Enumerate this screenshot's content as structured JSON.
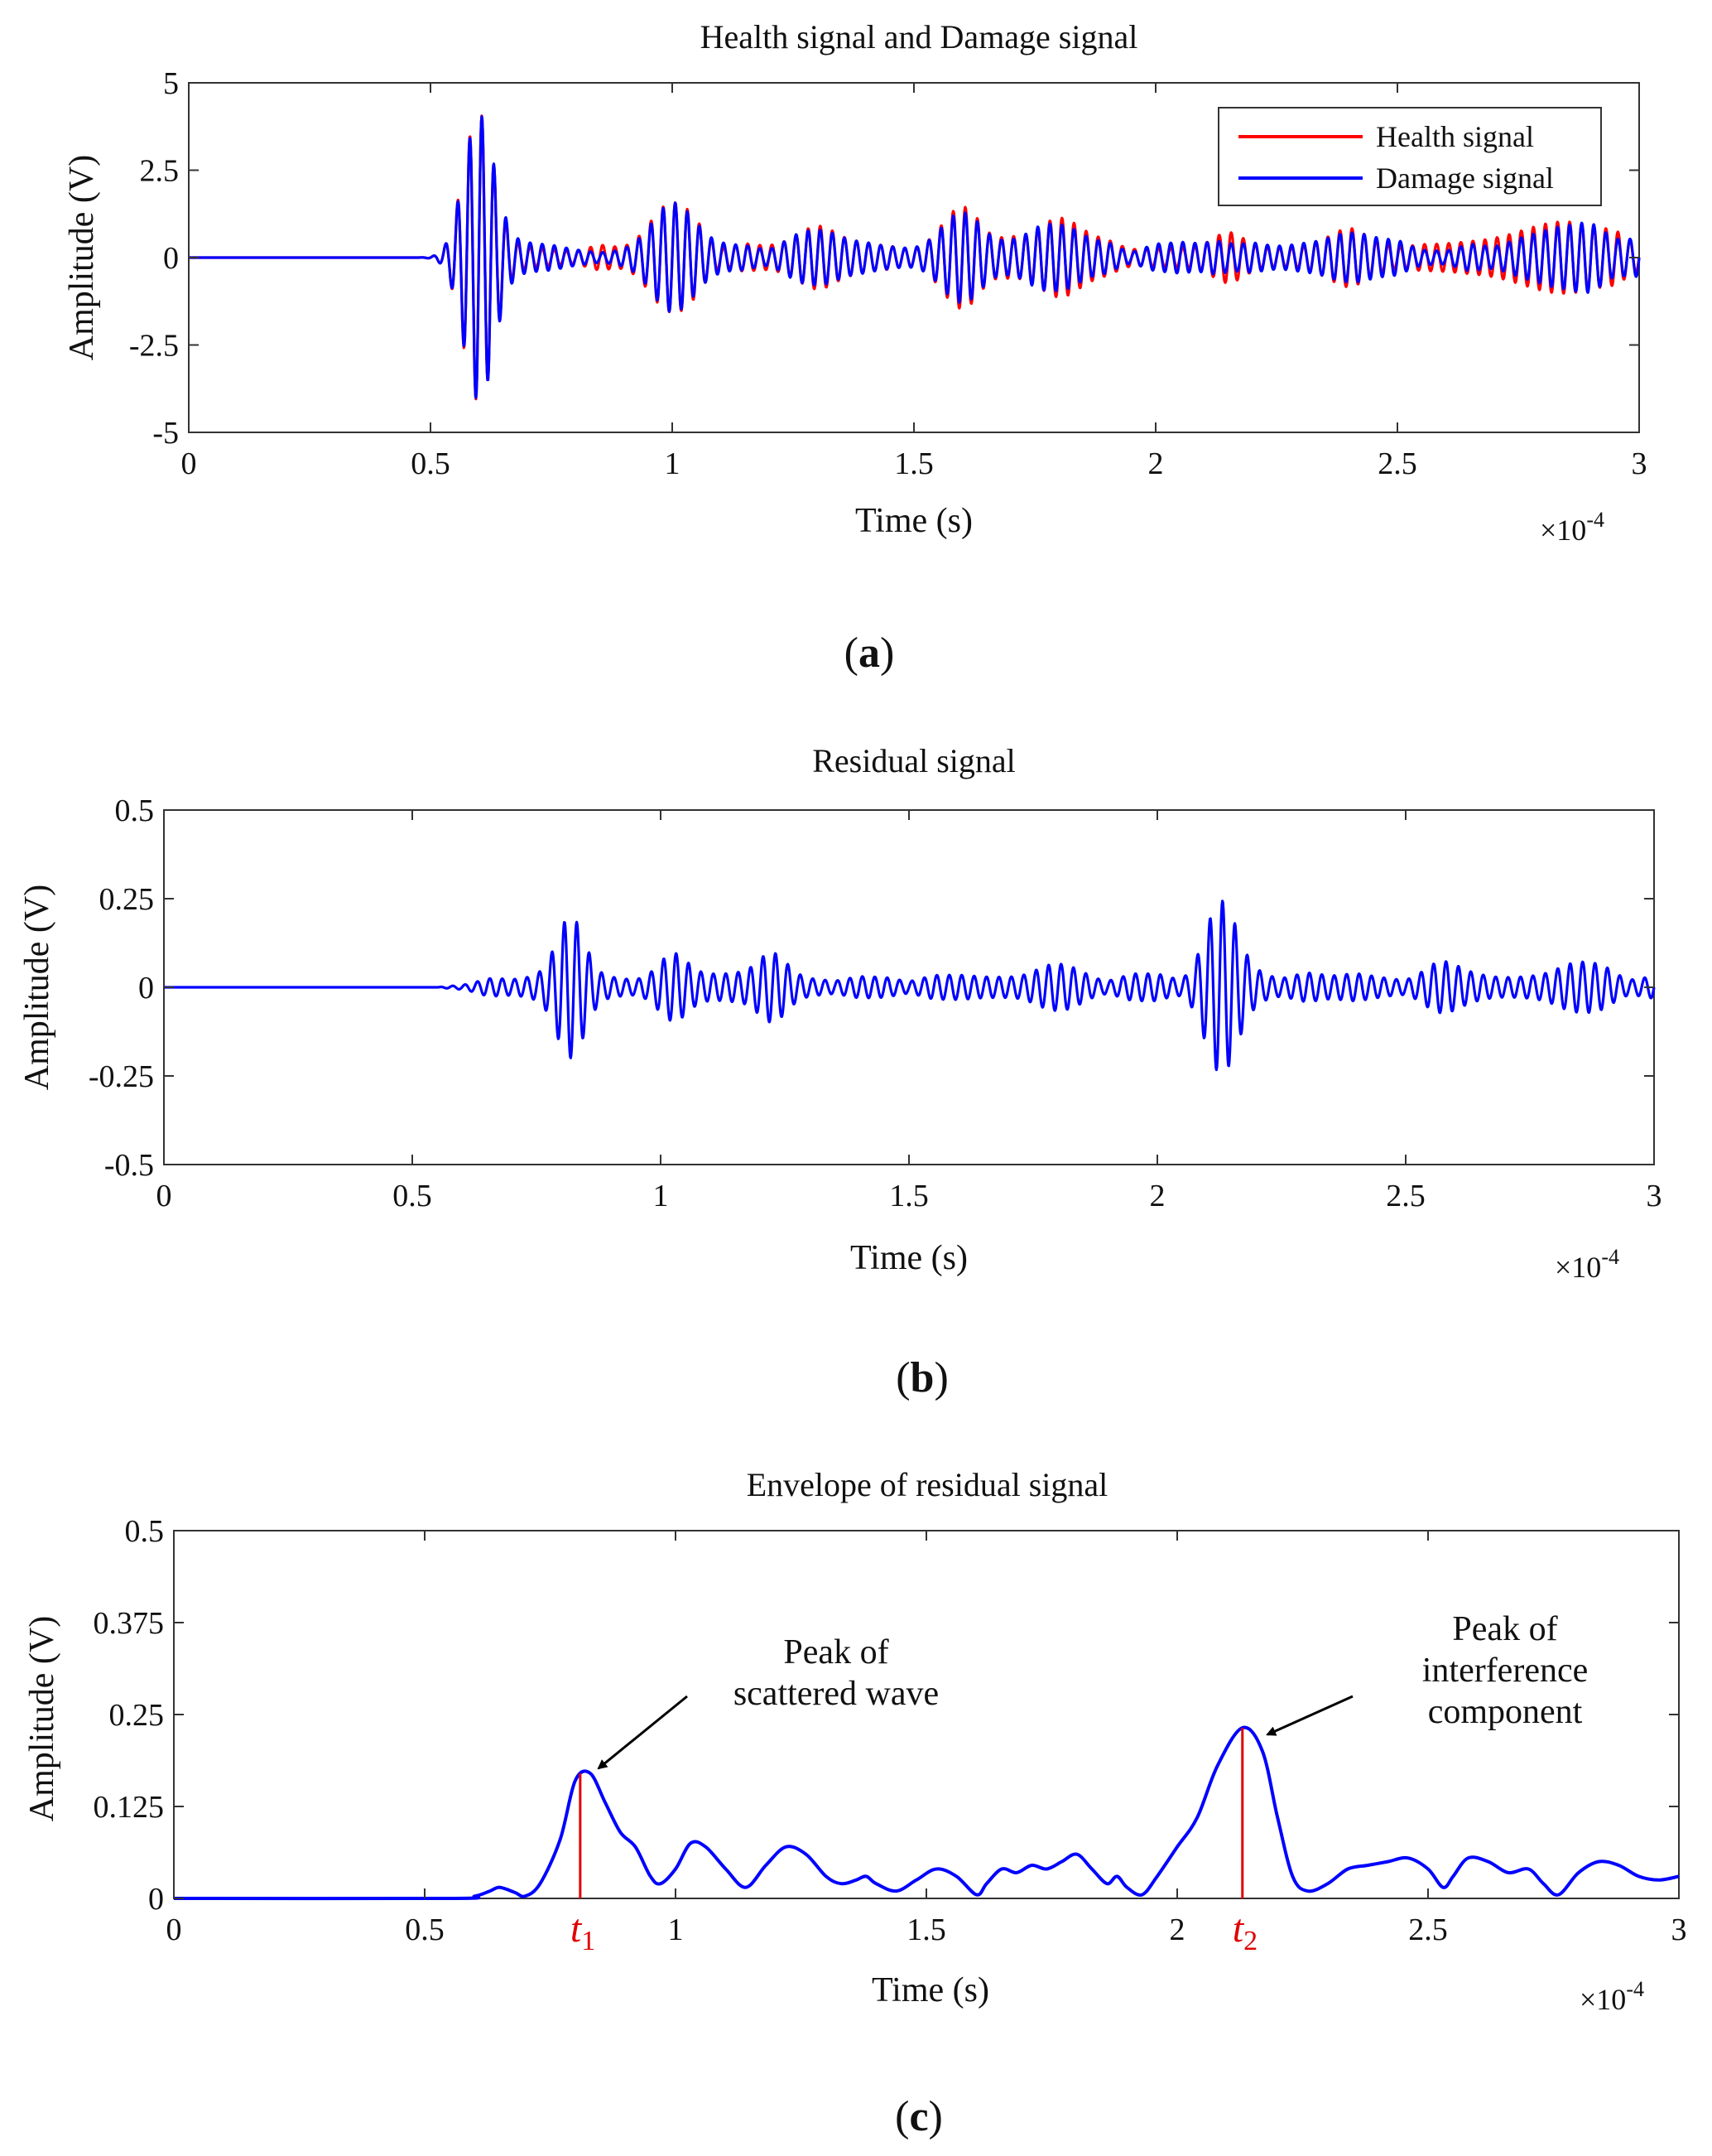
{
  "colors": {
    "health": "#ff0000",
    "damage": "#0000ff",
    "residual": "#0000ff",
    "envelope": "#0000ff",
    "marker": "#e00000",
    "axis": "#333333",
    "arrow": "#000000"
  },
  "chart_data": [
    {
      "id": "a",
      "type": "line",
      "title": "Health signal and Damage signal",
      "xlabel": "Time (s)",
      "ylabel": "Amplitude (V)",
      "xlim": [
        0,
        3
      ],
      "ylim": [
        -5,
        5
      ],
      "x_scale_factor": "×10",
      "x_scale_exponent": "-4",
      "xticks": [
        "0",
        "0.5",
        "1",
        "1.5",
        "2",
        "2.5",
        "3"
      ],
      "xtick_values": [
        0,
        0.5,
        1,
        1.5,
        2,
        2.5,
        3
      ],
      "yticks": [
        "5",
        "2.5",
        "0",
        "-2.5",
        "-5"
      ],
      "ytick_values": [
        5,
        2.5,
        0,
        -2.5,
        -5
      ],
      "grid": false,
      "legend": {
        "placement": "top-right",
        "entries": [
          "Health signal",
          "Damage signal"
        ]
      },
      "caption": "(a)",
      "series": [
        {
          "name": "Health signal",
          "color_key": "health",
          "frequency": 40,
          "onset": 0.53,
          "packets": [
            {
              "center": 0.6,
              "width": 0.045,
              "amplitude": 4.0
            },
            {
              "center": 1.0,
              "width": 0.06,
              "amplitude": 1.4
            },
            {
              "center": 1.3,
              "width": 0.07,
              "amplitude": 0.6
            },
            {
              "center": 1.6,
              "width": 0.06,
              "amplitude": 1.2
            },
            {
              "center": 1.8,
              "width": 0.07,
              "amplitude": 0.8
            },
            {
              "center": 2.15,
              "width": 0.05,
              "amplitude": 0.35
            },
            {
              "center": 2.4,
              "width": 0.08,
              "amplitude": 0.5
            },
            {
              "center": 2.85,
              "width": 0.12,
              "amplitude": 0.7
            }
          ],
          "baseline_amplitude": 0.3
        },
        {
          "name": "Damage signal",
          "color_key": "damage",
          "frequency": 40,
          "onset": 0.53,
          "packets": [
            {
              "center": 0.6,
              "width": 0.045,
              "amplitude": 4.0
            },
            {
              "center": 1.0,
              "width": 0.06,
              "amplitude": 1.3
            },
            {
              "center": 1.3,
              "width": 0.07,
              "amplitude": 0.55
            },
            {
              "center": 1.6,
              "width": 0.06,
              "amplitude": 1.15
            },
            {
              "center": 1.8,
              "width": 0.07,
              "amplitude": 0.75
            },
            {
              "center": 2.12,
              "width": 0.05,
              "amplitude": 0.3
            },
            {
              "center": 2.4,
              "width": 0.08,
              "amplitude": 0.5
            },
            {
              "center": 2.85,
              "width": 0.12,
              "amplitude": 0.72
            }
          ],
          "baseline_amplitude": 0.28
        }
      ]
    },
    {
      "id": "b",
      "type": "line",
      "title": "Residual signal",
      "xlabel": "Time (s)",
      "ylabel": "Amplitude (V)",
      "xlim": [
        0,
        3
      ],
      "ylim": [
        -0.5,
        0.5
      ],
      "x_scale_factor": "×10",
      "x_scale_exponent": "-4",
      "xticks": [
        "0",
        "0.5",
        "1",
        "1.5",
        "2",
        "2.5",
        "3"
      ],
      "xtick_values": [
        0,
        0.5,
        1,
        1.5,
        2,
        2.5,
        3
      ],
      "yticks": [
        "0.5",
        "0.25",
        "0",
        "-0.25",
        "-0.5"
      ],
      "ytick_values": [
        0.5,
        0.25,
        0,
        -0.25,
        -0.5
      ],
      "grid": false,
      "caption": "(b)",
      "series": [
        {
          "name": "Residual signal",
          "color_key": "residual",
          "frequency": 40,
          "onset": 0.55,
          "packets": [
            {
              "center": 0.82,
              "width": 0.04,
              "amplitude": 0.17
            },
            {
              "center": 1.03,
              "width": 0.04,
              "amplitude": 0.07
            },
            {
              "center": 1.22,
              "width": 0.04,
              "amplitude": 0.07
            },
            {
              "center": 1.8,
              "width": 0.05,
              "amplitude": 0.05
            },
            {
              "center": 2.13,
              "width": 0.045,
              "amplitude": 0.22
            },
            {
              "center": 2.58,
              "width": 0.05,
              "amplitude": 0.05
            },
            {
              "center": 2.85,
              "width": 0.06,
              "amplitude": 0.045
            }
          ],
          "baseline_amplitude": 0.028
        }
      ]
    },
    {
      "id": "c",
      "type": "line",
      "title": "Envelope of residual signal",
      "xlabel": "Time (s)",
      "ylabel": "Amplitude (V)",
      "xlim": [
        0,
        3
      ],
      "ylim": [
        0,
        0.5
      ],
      "x_scale_factor": "×10",
      "x_scale_exponent": "-4",
      "xticks": [
        "0",
        "0.5",
        "1",
        "1.5",
        "2",
        "2.5",
        "3"
      ],
      "xtick_values": [
        0,
        0.5,
        1,
        1.5,
        2,
        2.5,
        3
      ],
      "yticks": [
        "0.5",
        "0.375",
        "0.25",
        "0.125",
        "0"
      ],
      "ytick_values": [
        0.5,
        0.375,
        0.25,
        0.125,
        0
      ],
      "grid": false,
      "caption": "(c)",
      "series": [
        {
          "name": "Envelope of residual signal",
          "color_key": "envelope",
          "x": [
            0,
            0.55,
            0.6,
            0.63,
            0.65,
            0.68,
            0.7,
            0.73,
            0.77,
            0.8,
            0.83,
            0.86,
            0.89,
            0.92,
            0.95,
            0.97,
            1.0,
            1.03,
            1.06,
            1.1,
            1.14,
            1.18,
            1.22,
            1.26,
            1.3,
            1.33,
            1.36,
            1.38,
            1.4,
            1.44,
            1.48,
            1.52,
            1.56,
            1.6,
            1.62,
            1.65,
            1.68,
            1.71,
            1.74,
            1.77,
            1.8,
            1.83,
            1.86,
            1.88,
            1.9,
            1.93,
            1.96,
            2.0,
            2.04,
            2.08,
            2.13,
            2.17,
            2.2,
            2.23,
            2.26,
            2.3,
            2.34,
            2.38,
            2.42,
            2.46,
            2.5,
            2.53,
            2.55,
            2.58,
            2.62,
            2.66,
            2.7,
            2.73,
            2.76,
            2.8,
            2.84,
            2.88,
            2.92,
            2.96,
            3.0
          ],
          "values": [
            0,
            0,
            0.003,
            0.01,
            0.015,
            0.008,
            0.003,
            0.02,
            0.08,
            0.16,
            0.17,
            0.13,
            0.09,
            0.07,
            0.03,
            0.02,
            0.04,
            0.075,
            0.07,
            0.04,
            0.015,
            0.045,
            0.07,
            0.06,
            0.03,
            0.02,
            0.025,
            0.03,
            0.02,
            0.01,
            0.025,
            0.04,
            0.03,
            0.005,
            0.02,
            0.04,
            0.035,
            0.045,
            0.04,
            0.05,
            0.06,
            0.04,
            0.02,
            0.03,
            0.015,
            0.005,
            0.03,
            0.07,
            0.11,
            0.18,
            0.232,
            0.2,
            0.11,
            0.03,
            0.01,
            0.02,
            0.04,
            0.045,
            0.05,
            0.055,
            0.04,
            0.015,
            0.03,
            0.055,
            0.05,
            0.035,
            0.04,
            0.02,
            0.005,
            0.035,
            0.05,
            0.045,
            0.03,
            0.025,
            0.03
          ]
        }
      ],
      "markers": [
        {
          "label": "t",
          "sub": "1",
          "x": 0.81,
          "value": 0.17
        },
        {
          "label": "t",
          "sub": "2",
          "x": 2.13,
          "value": 0.232
        }
      ],
      "annotations": [
        {
          "lines": [
            "Peak of",
            "scattered wave"
          ],
          "target_x": 0.83,
          "target_value": 0.17
        },
        {
          "lines": [
            "Peak of",
            "interference",
            "component"
          ],
          "target_x": 2.16,
          "target_value": 0.225
        }
      ]
    }
  ]
}
